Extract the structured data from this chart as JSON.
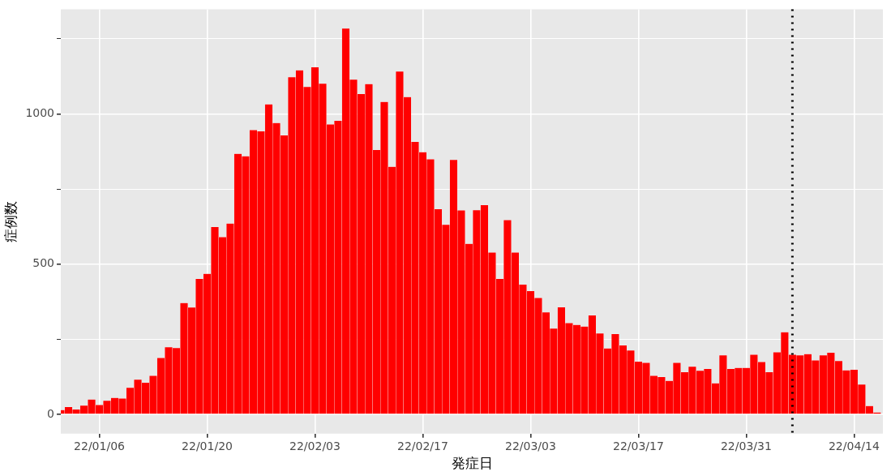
{
  "chart_data": {
    "type": "bar",
    "xlabel": "発症日",
    "ylabel": "症例数",
    "x": [
      "--01-01",
      "--01-02",
      "--01-03",
      "--01-04",
      "--01-05",
      "--01-06",
      "--01-07",
      "--01-08",
      "--01-09",
      "--01-10",
      "--01-11",
      "--01-12",
      "--01-13",
      "--01-14",
      "--01-15",
      "--01-16",
      "--01-17",
      "--01-18",
      "--01-19",
      "--01-20",
      "--01-21",
      "--01-22",
      "--01-23",
      "--01-24",
      "--01-25",
      "--01-26",
      "--01-27",
      "--01-28",
      "--01-29",
      "--01-30",
      "--01-31",
      "--02-01",
      "--02-02",
      "--02-03",
      "--02-04",
      "--02-05",
      "--02-06",
      "--02-07",
      "--02-08",
      "--02-09",
      "--02-10",
      "--02-11",
      "--02-12",
      "--02-13",
      "--02-14",
      "--02-15",
      "--02-16",
      "--02-17",
      "--02-18",
      "--02-19",
      "--02-20",
      "--02-21",
      "--02-22",
      "--02-23",
      "--02-24",
      "--02-25",
      "--02-26",
      "--02-27",
      "--02-28",
      "--03-01",
      "--03-02",
      "--03-03",
      "--03-04",
      "--03-05",
      "--03-06",
      "--03-07",
      "--03-08",
      "--03-09",
      "--03-10",
      "--03-11",
      "--03-12",
      "--03-13",
      "--03-14",
      "--03-15",
      "--03-16",
      "--03-17",
      "--03-18",
      "--03-19",
      "--03-20",
      "--03-21",
      "--03-22",
      "--03-23",
      "--03-24",
      "--03-25",
      "--03-26",
      "--03-27",
      "--03-28",
      "--03-29",
      "--03-30",
      "--03-31",
      "--04-01",
      "--04-02",
      "--04-03",
      "--04-04",
      "--04-05",
      "--04-06",
      "--04-07",
      "--04-08",
      "--04-09",
      "--04-10",
      "--04-11",
      "--04-12",
      "--04-13",
      "--04-14",
      "--04-15",
      "--04-16",
      "--04-17"
    ],
    "values": [
      15,
      25,
      17,
      30,
      50,
      32,
      46,
      55,
      53,
      89,
      116,
      106,
      129,
      188,
      224,
      221,
      371,
      356,
      451,
      468,
      624,
      590,
      635,
      867,
      859,
      946,
      942,
      1032,
      970,
      929,
      1122,
      1145,
      1090,
      1155,
      1101,
      965,
      977,
      1284,
      1114,
      1066,
      1099,
      880,
      1040,
      824,
      1141,
      1056,
      907,
      873,
      849,
      683,
      631,
      847,
      679,
      568,
      680,
      697,
      539,
      451,
      647,
      539,
      432,
      411,
      388,
      340,
      286,
      357,
      304,
      298,
      293,
      330,
      270,
      220,
      268,
      230,
      213,
      176,
      172,
      129,
      125,
      112,
      172,
      141,
      159,
      146,
      152,
      104,
      197,
      152,
      155,
      155,
      199,
      175,
      141,
      207,
      274,
      199,
      197,
      201,
      180,
      197,
      206,
      178,
      147,
      149,
      100,
      28,
      7
    ],
    "color": "#ff0000",
    "xlim": [
      "--01-01T00:00",
      "--04-17T18:00"
    ],
    "xticks": [
      {
        "value": "--01-06",
        "label": "22/01/06"
      },
      {
        "value": "--01-20",
        "label": "22/01/20"
      },
      {
        "value": "--02-03",
        "label": "22/02/03"
      },
      {
        "value": "--02-17",
        "label": "22/02/17"
      },
      {
        "value": "--03-03",
        "label": "22/03/03"
      },
      {
        "value": "--03-17",
        "label": "22/03/17"
      },
      {
        "value": "--03-31",
        "label": "22/03/31"
      },
      {
        "value": "--04-14",
        "label": "22/04/14"
      }
    ],
    "ylim": [
      -64,
      1348
    ],
    "yticks": [
      0,
      {
        "value": 250,
        "label": null
      },
      500,
      {
        "value": 750,
        "label": null
      },
      1000,
      {
        "value": 1250,
        "label": null
      }
    ],
    "grid": true,
    "ref_lines": [
      {
        "axis": "x",
        "value": "--04-06",
        "color": "#000000",
        "line_style": "dotted"
      }
    ]
  }
}
